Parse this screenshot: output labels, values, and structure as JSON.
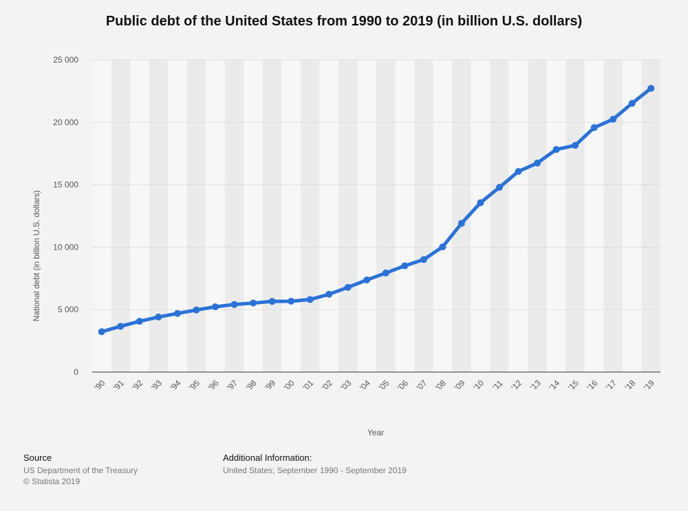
{
  "chart_data": {
    "type": "line",
    "title": "Public debt of the United States from 1990 to 2019 (in billion U.S. dollars)",
    "xlabel": "Year",
    "ylabel": "National debt (in billion U.S. dollars)",
    "ylim": [
      0,
      25000
    ],
    "yticks": [
      "0",
      "5 000",
      "10 000",
      "15 000",
      "20 000",
      "25 000"
    ],
    "ytick_values": [
      0,
      5000,
      10000,
      15000,
      20000,
      25000
    ],
    "grid": true,
    "categories": [
      "'90",
      "'91",
      "'92",
      "'93",
      "'94",
      "'95",
      "'96",
      "'97",
      "'98",
      "'99",
      "'00",
      "'01",
      "'02",
      "'03",
      "'04",
      "'05",
      "'06",
      "'07",
      "'08",
      "'09",
      "'10",
      "'11",
      "'12",
      "'13",
      "'14",
      "'15",
      "'16",
      "'17",
      "'18",
      "'19"
    ],
    "series": [
      {
        "values": [
          3233,
          3665,
          4065,
          4411,
          4693,
          4974,
          5225,
          5413,
          5526,
          5656,
          5674,
          5807,
          6228,
          6783,
          7379,
          7933,
          8507,
          9008,
          10025,
          11910,
          13562,
          14790,
          16066,
          16738,
          17824,
          18151,
          19573,
          20245,
          21516,
          22719
        ]
      }
    ],
    "colors": {
      "line": "#2a72d8",
      "band": "#ebebeb",
      "plot_bg": "#f7f7f7",
      "grid": "#cfcfcf"
    }
  },
  "footer": {
    "source_heading": "Source",
    "source_line1": "US Department of the Treasury",
    "source_line2": "© Statista 2019",
    "info_heading": "Additional Information:",
    "info_line1": "United States; September 1990 - September 2019"
  }
}
